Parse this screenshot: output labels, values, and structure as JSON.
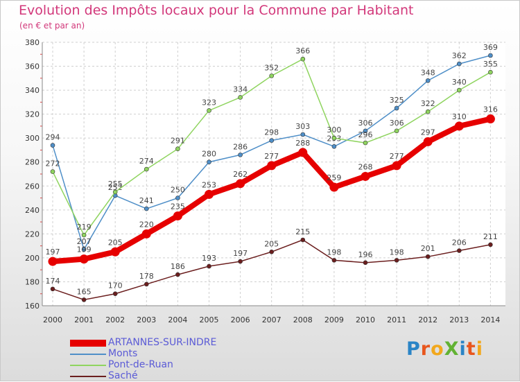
{
  "header": {
    "title": "Evolution des Impôts locaux pour la Commune par Habitant",
    "subtitle": "(en € et par an)"
  },
  "logo": {
    "text": "ProXiti",
    "colors": [
      "#2a84c6",
      "#e8561d",
      "#f2a81d",
      "#62b233",
      "#2a84c6",
      "#e8561d",
      "#f2a81d"
    ]
  },
  "chart_data": {
    "type": "line",
    "title": "Evolution des Impôts locaux pour la Commune par Habitant",
    "subtitle": "(en € et par an)",
    "xlabel": "",
    "ylabel": "",
    "x": [
      2000,
      2001,
      2002,
      2003,
      2004,
      2005,
      2006,
      2007,
      2008,
      2009,
      2010,
      2011,
      2012,
      2013,
      2014
    ],
    "ylim": [
      160,
      380
    ],
    "yticks": [
      160,
      180,
      200,
      220,
      240,
      260,
      280,
      300,
      320,
      340,
      360,
      380
    ],
    "grid": true,
    "legend_position": "bottom-left",
    "series": [
      {
        "name": "Saché",
        "color": "#6b1e1e",
        "values": [
          174,
          165,
          170,
          178,
          186,
          193,
          197,
          205,
          215,
          198,
          196,
          198,
          201,
          206,
          211
        ],
        "emphasis": false
      },
      {
        "name": "Monts",
        "color": "#4f8fc8",
        "values": [
          294,
          207,
          252,
          241,
          250,
          280,
          286,
          298,
          303,
          293,
          306,
          325,
          348,
          362,
          369
        ],
        "emphasis": false
      },
      {
        "name": "Pont-de-Ruan",
        "color": "#8fd45f",
        "values": [
          272,
          219,
          255,
          274,
          291,
          323,
          334,
          352,
          366,
          300,
          296,
          306,
          322,
          340,
          355
        ],
        "emphasis": false
      },
      {
        "name": "ARTANNES-SUR-INDRE",
        "color": "#e60000",
        "values": [
          197,
          199,
          205,
          220,
          235,
          253,
          262,
          277,
          288,
          259,
          268,
          277,
          297,
          310,
          316
        ],
        "emphasis": true
      }
    ],
    "legend_order": [
      "ARTANNES-SUR-INDRE",
      "Monts",
      "Pont-de-Ruan",
      "Saché"
    ]
  }
}
